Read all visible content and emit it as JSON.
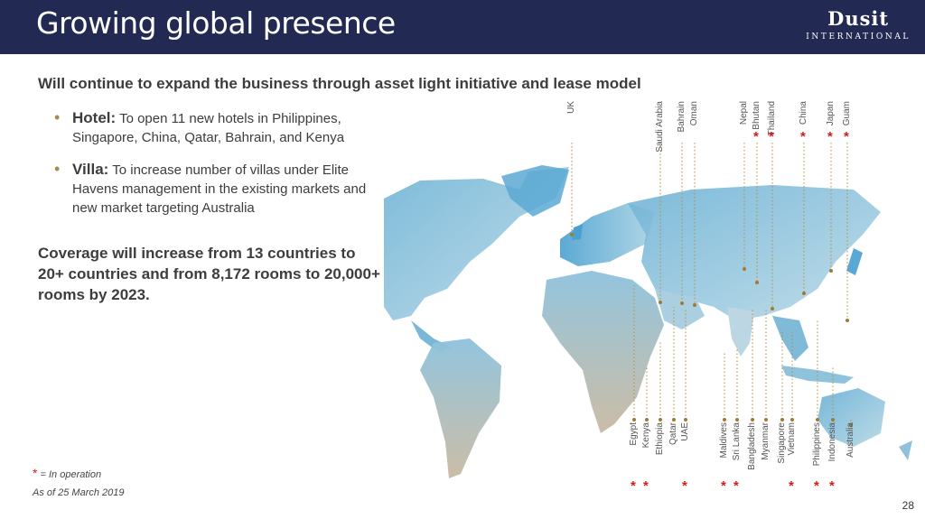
{
  "header": {
    "title": "Growing global presence",
    "logo_brand": "Dusit",
    "logo_sub": "INTERNATIONAL"
  },
  "headline": "Will continue to expand the business through asset light initiative and lease model",
  "bullets": [
    {
      "label": "Hotel:",
      "text": " To open  11 new hotels in Philippines, Singapore, China, Qatar, Bahrain, and Kenya"
    },
    {
      "label": "Villa:",
      "text": " To increase number of villas under Elite Havens management in the existing markets and new market targeting Australia"
    }
  ],
  "coverage": "Coverage will increase from 13 countries to 20+ countries and from 8,172 rooms to 20,000+ rooms by 2023.",
  "top_countries": [
    {
      "name": "UK",
      "in_operation": false
    },
    {
      "name": "Saudi Arabia",
      "in_operation": false
    },
    {
      "name": "Bahrain",
      "in_operation": false
    },
    {
      "name": "Oman",
      "in_operation": false
    },
    {
      "name": "Nepal",
      "in_operation": false
    },
    {
      "name": "Bhutan",
      "in_operation": true
    },
    {
      "name": "Thailand",
      "in_operation": true
    },
    {
      "name": "China",
      "in_operation": true
    },
    {
      "name": "Japan",
      "in_operation": true
    },
    {
      "name": "Guam",
      "in_operation": true
    }
  ],
  "bottom_countries": [
    {
      "name": "Egypt",
      "in_operation": true
    },
    {
      "name": "Kenya",
      "in_operation": true
    },
    {
      "name": "Ethiopia",
      "in_operation": false
    },
    {
      "name": "Qatar",
      "in_operation": false
    },
    {
      "name": "UAE",
      "in_operation": true
    },
    {
      "name": "Maldives",
      "in_operation": true
    },
    {
      "name": "Sri Lanka",
      "in_operation": true
    },
    {
      "name": "Bangladesh",
      "in_operation": false
    },
    {
      "name": "Myanmar",
      "in_operation": false
    },
    {
      "name": "Singapore",
      "in_operation": false
    },
    {
      "name": "Vietnam",
      "in_operation": true
    },
    {
      "name": "Philippines",
      "in_operation": true
    },
    {
      "name": "Indonesia",
      "in_operation": true
    },
    {
      "name": "Australia",
      "in_operation": false
    }
  ],
  "legend": {
    "star": "*",
    "text": " = In operation"
  },
  "as_of": "As of 25 March 2019",
  "page_number": "28",
  "colors": {
    "header_bg": "#222a54",
    "accent": "#a88a58",
    "operation_star": "#d01c1c",
    "map_light": "#9cc6dc",
    "map_dark": "#3e8fbf"
  }
}
